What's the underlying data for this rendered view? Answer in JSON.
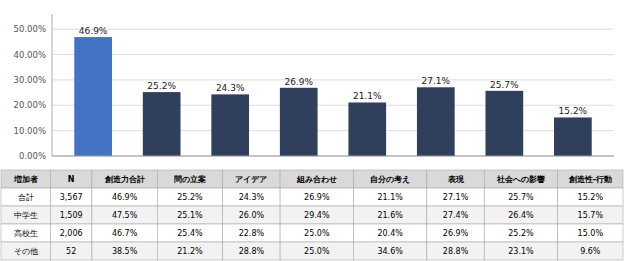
{
  "chart_data": {
    "type": "bar",
    "categories": [
      "創造力合計",
      "問の立案",
      "アイデア",
      "組み合わせ",
      "自分の考え",
      "表現",
      "社会への影響",
      "創造性-行動"
    ],
    "values": [
      46.9,
      25.2,
      24.3,
      26.9,
      21.1,
      27.1,
      25.7,
      15.2
    ],
    "value_labels": [
      "46.9%",
      "25.2%",
      "24.3%",
      "26.9%",
      "21.1%",
      "27.1%",
      "25.7%",
      "15.2%"
    ],
    "colors": [
      "#4472C4",
      "#2F3F5C",
      "#2F3F5C",
      "#2F3F5C",
      "#2F3F5C",
      "#2F3F5C",
      "#2F3F5C",
      "#2F3F5C"
    ],
    "ylim": [
      0,
      56
    ],
    "yticks": [
      {
        "value": 0,
        "label": "0.00%"
      },
      {
        "value": 10,
        "label": "10.00%"
      },
      {
        "value": 20,
        "label": "20.00%"
      },
      {
        "value": 30,
        "label": "30.00%"
      },
      {
        "value": 40,
        "label": "40.00%"
      },
      {
        "value": 50,
        "label": "50.00%"
      }
    ],
    "grid": true,
    "data_labels": true,
    "tick_labels": "y",
    "table": {
      "headers": [
        "増加者",
        "N"
      ],
      "rows": [
        [
          "合計",
          "3,567",
          "46.9%",
          "25.2%",
          "24.3%",
          "26.9%",
          "21.1%",
          "27.1%",
          "25.7%",
          "15.2%"
        ],
        [
          "中学生",
          "1,509",
          "47.5%",
          "25.1%",
          "26.0%",
          "29.4%",
          "21.6%",
          "27.4%",
          "26.4%",
          "15.7%"
        ],
        [
          "高校生",
          "2,006",
          "46.7%",
          "25.4%",
          "22.8%",
          "25.0%",
          "20.4%",
          "26.9%",
          "25.2%",
          "15.0%"
        ],
        [
          "その他",
          "52",
          "38.5%",
          "21.2%",
          "28.8%",
          "25.0%",
          "34.6%",
          "28.8%",
          "23.1%",
          "9.6%"
        ]
      ]
    }
  }
}
